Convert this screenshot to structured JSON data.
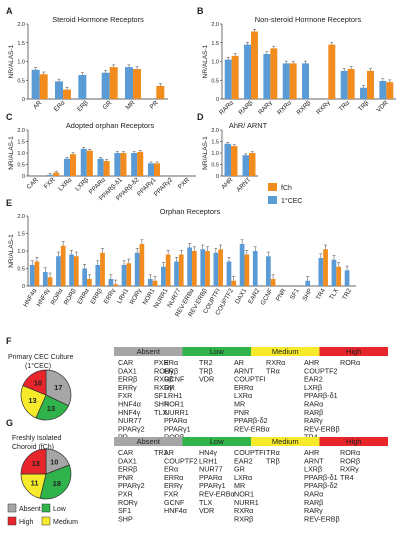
{
  "colors": {
    "fCh": "#f28c1e",
    "CEC": "#5b9bd5",
    "absent": "#a6a6a6",
    "low": "#2fb34a",
    "medium": "#f7ea2a",
    "high": "#e8252a"
  },
  "ylabel": "NR/ALAS-1",
  "legend": {
    "fCh": "fCh",
    "CEC": "1°CEC"
  },
  "chart_data": [
    {
      "panel": "A",
      "type": "bar",
      "title": "Steroid Hormone Receptors",
      "ylabel": "NR/ALAS-1",
      "ylim": [
        0,
        2.0
      ],
      "yticks": [
        "0",
        "0.5",
        "1.0",
        "1.5",
        "2.0"
      ],
      "categories": [
        "AR",
        "ERα",
        "ERβ",
        "GR",
        "MR",
        "PR"
      ],
      "series": [
        {
          "name": "1°CEC",
          "values": [
            0.78,
            0.47,
            0.64,
            0.7,
            0.85,
            0.0
          ]
        },
        {
          "name": "fCh",
          "values": [
            0.66,
            0.25,
            0.0,
            0.85,
            0.8,
            0.35
          ]
        }
      ]
    },
    {
      "panel": "B",
      "type": "bar",
      "title": "Non-steroid Hormone Receptors",
      "ylabel": "NR/ALAS-1",
      "ylim": [
        0,
        2.0
      ],
      "yticks": [
        "0",
        "0.5",
        "1.0",
        "1.5",
        "2.0"
      ],
      "categories": [
        "RARα",
        "RARβ",
        "RARγ",
        "RXRα",
        "RXRβ",
        "RXRγ",
        "TRα",
        "TRβ",
        "VDR"
      ],
      "series": [
        {
          "name": "1°CEC",
          "values": [
            1.05,
            1.45,
            1.2,
            0.95,
            0.95,
            0.0,
            0.75,
            0.3,
            0.48
          ]
        },
        {
          "name": "fCh",
          "values": [
            1.15,
            1.8,
            1.35,
            0.95,
            0.0,
            1.45,
            0.8,
            0.75,
            0.45
          ]
        }
      ]
    },
    {
      "panel": "C",
      "type": "bar",
      "title": "Adopted orphan Receptors",
      "ylabel": "NR/ALAS-1",
      "ylim": [
        0,
        2.0
      ],
      "yticks": [
        "0",
        "0.5",
        "1.0",
        "1.5",
        "2.0"
      ],
      "categories": [
        "CAR",
        "FXR",
        "LXRα",
        "LXRβ",
        "PPARα",
        "PPARβ-δ1",
        "PPARβ-δ2",
        "PPARγ1",
        "PPARγ2",
        "PXR"
      ],
      "series": [
        {
          "name": "1°CEC",
          "values": [
            0.0,
            0.05,
            0.75,
            1.18,
            0.75,
            1.0,
            1.0,
            0.55,
            0.0,
            0.0
          ]
        },
        {
          "name": "fCh",
          "values": [
            0.0,
            0.15,
            0.95,
            1.1,
            0.65,
            1.0,
            1.05,
            0.55,
            0.0,
            0.0
          ]
        }
      ]
    },
    {
      "panel": "D",
      "type": "bar",
      "title": "AhR/ ARNT",
      "ylabel": "NR/ALAS-1",
      "ylim": [
        0,
        2.0
      ],
      "yticks": [
        "0",
        "0.5",
        "1.0",
        "1.5",
        "2.0"
      ],
      "categories": [
        "AHR",
        "ARNT"
      ],
      "series": [
        {
          "name": "1°CEC",
          "values": [
            1.4,
            0.9
          ]
        },
        {
          "name": "fCh",
          "values": [
            1.3,
            1.0
          ]
        }
      ]
    },
    {
      "panel": "E",
      "type": "bar",
      "title": "Orphan Receptors",
      "ylabel": "NR/ALAS-1",
      "ylim": [
        0,
        2.0
      ],
      "yticks": [
        "0",
        "0.5",
        "1.0",
        "1.5",
        "2.0"
      ],
      "categories": [
        "HNF4α",
        "HNF4γ",
        "RORα",
        "RORβ",
        "ERRα",
        "ERRβ",
        "ERRγ",
        "LRH1",
        "RORγ",
        "NOR1",
        "NURR1",
        "NUR77",
        "REV-ERBα",
        "REV-ERBβ",
        "COUPTFI",
        "COUPTF2",
        "DAX1",
        "EAR2",
        "GCNF",
        "PNR",
        "SF1",
        "SHP",
        "TR4",
        "TLX",
        "TR2"
      ],
      "series": [
        {
          "name": "1°CEC",
          "values": [
            0.6,
            0.4,
            0.85,
            0.9,
            0.5,
            0.6,
            0.2,
            0.6,
            0.95,
            0.2,
            0.55,
            0.7,
            1.1,
            1.05,
            0.95,
            0.7,
            1.2,
            1.0,
            0.85,
            0.0,
            0.0,
            0.15,
            0.8,
            0.75,
            0.45
          ]
        },
        {
          "name": "fCh",
          "values": [
            0.7,
            0.25,
            1.15,
            0.85,
            0.2,
            0.95,
            0.05,
            0.65,
            1.2,
            0.15,
            0.9,
            0.9,
            1.0,
            1.0,
            1.05,
            0.15,
            0.9,
            0.0,
            0.2,
            0.0,
            0.0,
            0.0,
            1.05,
            0.55,
            0.0
          ]
        }
      ]
    }
  ],
  "panel_labels": [
    "A",
    "B",
    "C",
    "D",
    "E",
    "F",
    "G"
  ],
  "panelF": {
    "title_line1": "Primary CEC Culture",
    "title_line2": "(1°CEC)",
    "pie": [
      {
        "cat": "Absent",
        "value": 17
      },
      {
        "cat": "Low",
        "value": 13
      },
      {
        "cat": "Medium",
        "value": 13
      },
      {
        "cat": "High",
        "value": 10
      }
    ],
    "headers": [
      "Absent",
      "Low",
      "Medium",
      "High"
    ],
    "columns": [
      [
        "CAR",
        "DAX1",
        "ERRβ",
        "ERRγ",
        "FXR",
        "HNF4α",
        "HNF4γ",
        "NUR77",
        "PPARγ2",
        "PR"
      ],
      [
        "PXR",
        "RORγ",
        "RXRβ",
        "RXRγ",
        "SF1",
        "SHP",
        "TLX"
      ],
      [
        "ERα",
        "ERβ",
        "GCNF",
        "GR",
        "LRH1",
        "NOR1",
        "NURR1",
        "PPARα",
        "PPARγ1",
        "RORβ"
      ],
      [
        "TR2",
        "TRβ",
        "VDR"
      ],
      [
        "AR",
        "ARNT",
        "COUPTFI",
        "ERRα",
        "LXRα",
        "MR",
        "PNR",
        "PPARβ-δ2",
        "REV-ERBα"
      ],
      [
        "RXRα",
        "TRα"
      ],
      [
        "AHR",
        "COUPTF2",
        "EAR2",
        "LXRβ",
        "PPARβ-δ1",
        "RARα",
        "RARβ",
        "RARγ",
        "REV-ERBβ",
        "TR4"
      ],
      [
        "RORα"
      ]
    ]
  },
  "panelG": {
    "title_line1": "Freshly Isolated",
    "title_line2": "Choroid (fCh)",
    "pie": [
      {
        "cat": "Absent",
        "value": 10
      },
      {
        "cat": "Low",
        "value": 18
      },
      {
        "cat": "Medium",
        "value": 11
      },
      {
        "cat": "High",
        "value": 13
      }
    ],
    "headers": [
      "Absent",
      "Low",
      "Medium",
      "High"
    ],
    "columns": [
      [
        "CAR",
        "DAX1",
        "ERRβ",
        "PNR",
        "PPARγ2",
        "PXR",
        "RORγ",
        "SF1",
        "SHP"
      ],
      [
        "TR2"
      ],
      [
        "AR",
        "COUPTF2",
        "ERα",
        "ERRα",
        "ERRγ",
        "FXR",
        "GCNF",
        "HNF4α"
      ],
      [
        "HN4γ",
        "LRH1",
        "NUR77",
        "PPARα",
        "PPARγ1",
        "REV-ERBα",
        "TLX",
        "VDR"
      ],
      [
        "COUPTFI",
        "EAR2",
        "GR",
        "LXRα",
        "MR",
        "NOR1",
        "NURR1",
        "RXRα",
        "RXRβ"
      ],
      [
        "TRα",
        "TRβ"
      ],
      [
        "AHR",
        "ARNT",
        "LXRβ",
        "PPARβ-δ1",
        "PPARβ-δ2",
        "RARα",
        "RARβ",
        "RARγ",
        "REV-ERBβ"
      ],
      [
        "RORα",
        "RORβ",
        "RXRγ",
        "TR4"
      ]
    ]
  },
  "pie_legend": [
    "Absent",
    "Low",
    "High",
    "Medium"
  ]
}
